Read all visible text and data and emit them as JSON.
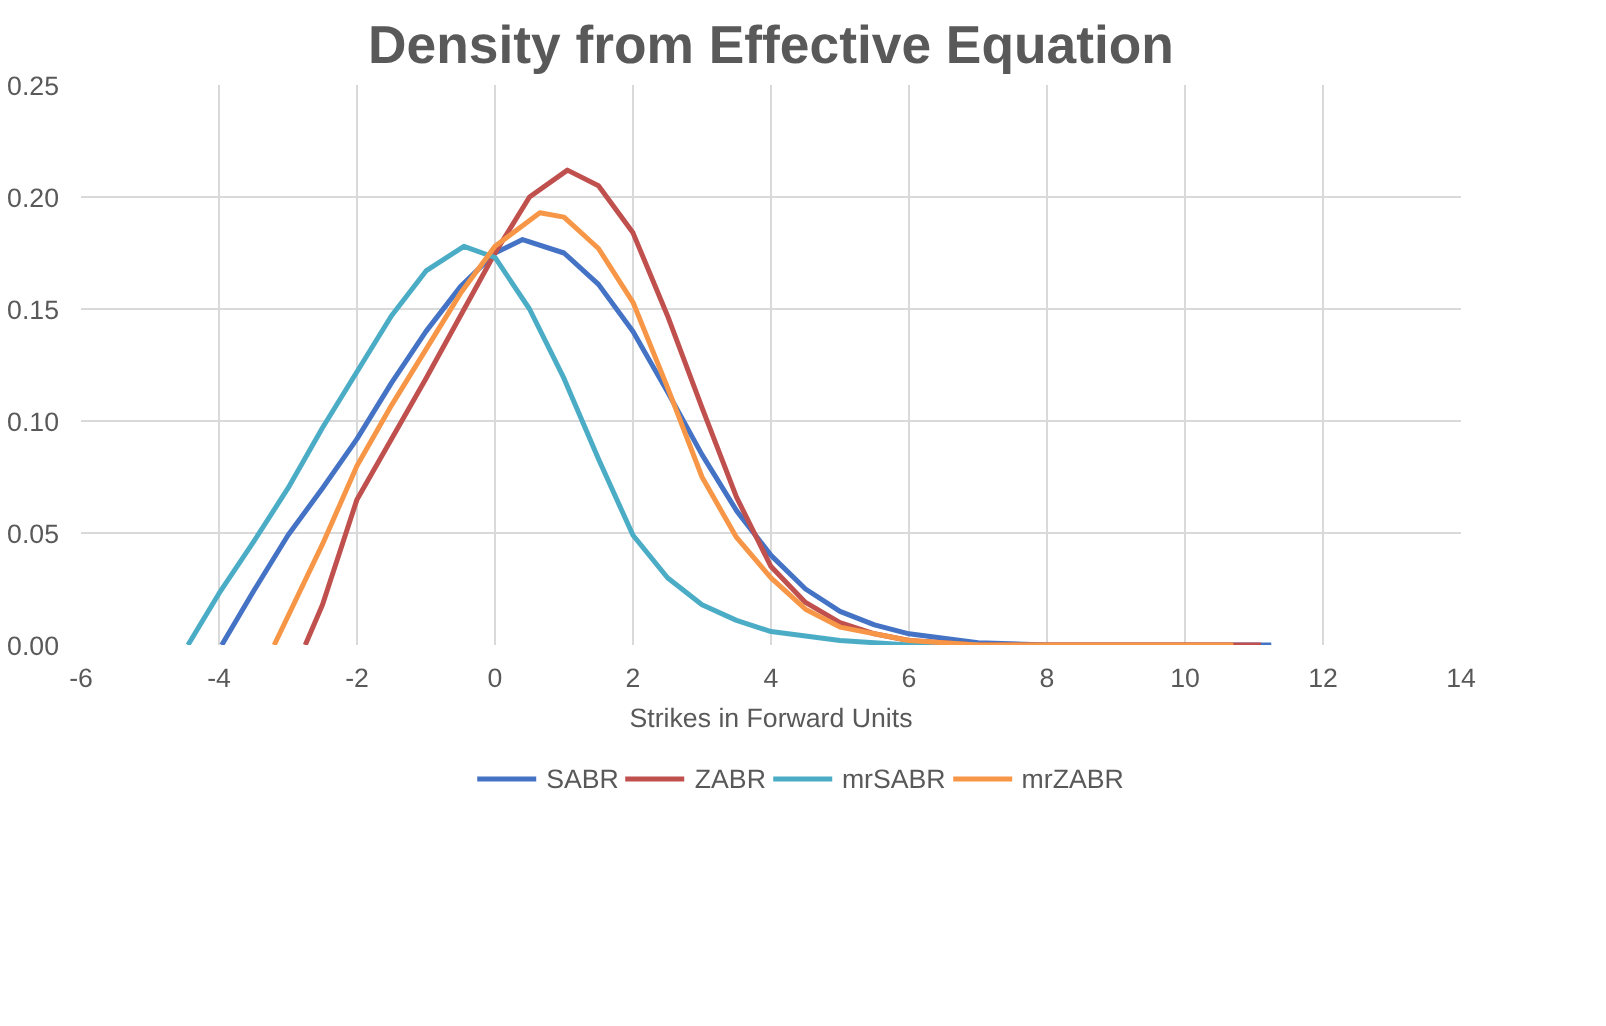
{
  "chart_data": {
    "type": "line",
    "title": "Density from Effective Equation",
    "xlabel": "Strikes in Forward Units",
    "xlim": [
      -6,
      14
    ],
    "xticks": [
      -6,
      -4,
      -2,
      0,
      2,
      4,
      6,
      8,
      10,
      12,
      14
    ],
    "ylim": [
      0,
      0.25
    ],
    "yticks": [
      {
        "value": 0,
        "label": "0.00"
      },
      {
        "value": 0.05,
        "label": "0.05"
      },
      {
        "value": 0.1,
        "label": "0.10"
      },
      {
        "value": 0.15,
        "label": "0.15"
      },
      {
        "value": 0.2,
        "label": "0.20"
      },
      {
        "value": 0.25,
        "label": "0.25"
      }
    ],
    "grid": true,
    "legend": "bottom",
    "marker": "none",
    "line_style": "solid",
    "series": [
      {
        "name": "SABR",
        "color": "#4472c4",
        "x": [
          -3.96,
          -3.5,
          -3,
          -2.5,
          -2,
          -1.5,
          -1,
          -0.5,
          0,
          0.4,
          1,
          1.5,
          2,
          2.5,
          3,
          3.5,
          4,
          4.5,
          5,
          5.5,
          6,
          7,
          8,
          11.25
        ],
        "values": [
          0,
          0.024,
          0.049,
          0.07,
          0.092,
          0.117,
          0.14,
          0.16,
          0.175,
          0.181,
          0.175,
          0.161,
          0.14,
          0.113,
          0.085,
          0.06,
          0.04,
          0.025,
          0.015,
          0.009,
          0.005,
          0.001,
          0,
          0
        ]
      },
      {
        "name": "ZABR",
        "color": "#c0504d",
        "x": [
          -2.75,
          -2.5,
          -2,
          -1.5,
          -1,
          -0.5,
          0,
          0.5,
          1.05,
          1.5,
          2,
          2.5,
          3,
          3.5,
          4,
          4.5,
          5,
          5.5,
          6,
          7,
          11.1
        ],
        "values": [
          0,
          0.018,
          0.065,
          0.092,
          0.119,
          0.147,
          0.175,
          0.2,
          0.212,
          0.205,
          0.184,
          0.147,
          0.106,
          0.066,
          0.035,
          0.019,
          0.01,
          0.005,
          0.002,
          0,
          0
        ]
      },
      {
        "name": "mrSABR",
        "color": "#4bacc6",
        "x": [
          -4.45,
          -4,
          -3.5,
          -3,
          -2.5,
          -2,
          -1.5,
          -1,
          -0.45,
          0,
          0.5,
          1,
          1.5,
          2,
          2.5,
          3,
          3.5,
          4,
          5,
          6,
          7
        ],
        "values": [
          0,
          0.023,
          0.046,
          0.07,
          0.097,
          0.122,
          0.147,
          0.167,
          0.178,
          0.173,
          0.15,
          0.119,
          0.083,
          0.049,
          0.03,
          0.018,
          0.011,
          0.006,
          0.002,
          0,
          0
        ]
      },
      {
        "name": "mrZABR",
        "color": "#f79646",
        "x": [
          -3.2,
          -2.5,
          -2,
          -1.5,
          -1,
          -0.5,
          0,
          0.65,
          1,
          1.5,
          2,
          2.5,
          3,
          3.5,
          4,
          4.5,
          5,
          6,
          7,
          10.7
        ],
        "values": [
          0,
          0.045,
          0.08,
          0.107,
          0.132,
          0.157,
          0.178,
          0.193,
          0.191,
          0.177,
          0.153,
          0.115,
          0.075,
          0.048,
          0.03,
          0.016,
          0.008,
          0.002,
          0,
          0
        ]
      }
    ]
  }
}
